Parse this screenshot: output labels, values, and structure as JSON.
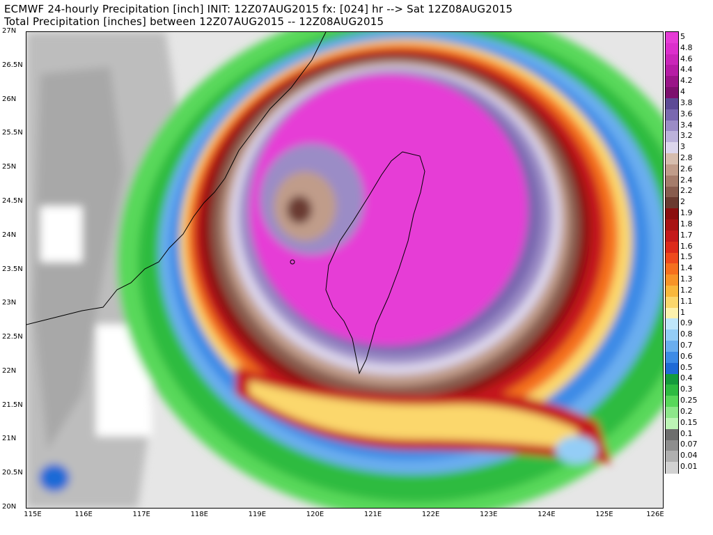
{
  "title_line1": "ECMWF 24-hourly Precipitation [inch] INIT: 12Z07AUG2015 fx: [024] hr --> Sat 12Z08AUG2015",
  "title_line2": "Total Precipitation [inches] between 12Z07AUG2015 -- 12Z08AUG2015",
  "map": {
    "lon_range": [
      115,
      126
    ],
    "lat_range": [
      20,
      27
    ],
    "lat_labels": [
      "27N",
      "26.5N",
      "26N",
      "25.5N",
      "25N",
      "24.5N",
      "24N",
      "23.5N",
      "23N",
      "22.5N",
      "22N",
      "21.5N",
      "21N",
      "20.5N",
      "20N"
    ],
    "lon_labels": [
      "115E",
      "116E",
      "117E",
      "118E",
      "119E",
      "120E",
      "121E",
      "122E",
      "123E",
      "124E",
      "125E",
      "126E"
    ],
    "features": [
      "China coastline",
      "Taiwan",
      "Penghu Islands",
      "Typhoon Soudelor rain shield"
    ]
  },
  "legend": {
    "unit": "inch",
    "levels": [
      {
        "label": "5",
        "color": "#e63cd6"
      },
      {
        "label": "4.8",
        "color": "#dc2fcc"
      },
      {
        "label": "4.6",
        "color": "#ca26b9"
      },
      {
        "label": "4.4",
        "color": "#b61ca5"
      },
      {
        "label": "4.2",
        "color": "#9a1488"
      },
      {
        "label": "4",
        "color": "#7d106e"
      },
      {
        "label": "3.8",
        "color": "#5d4a96"
      },
      {
        "label": "3.6",
        "color": "#7a68b0"
      },
      {
        "label": "3.4",
        "color": "#9b8cc6"
      },
      {
        "label": "3.2",
        "color": "#bcb2da"
      },
      {
        "label": "3",
        "color": "#dcd6ec"
      },
      {
        "label": "2.8",
        "color": "#d6bdae"
      },
      {
        "label": "2.6",
        "color": "#c09c8a"
      },
      {
        "label": "2.4",
        "color": "#a57c6b"
      },
      {
        "label": "2.2",
        "color": "#885c4e"
      },
      {
        "label": "2",
        "color": "#6a3a30"
      },
      {
        "label": "1.9",
        "color": "#8b0f0f"
      },
      {
        "label": "1.8",
        "color": "#a81414"
      },
      {
        "label": "1.7",
        "color": "#c4191a"
      },
      {
        "label": "1.6",
        "color": "#dc2a1a"
      },
      {
        "label": "1.5",
        "color": "#ee4a1c"
      },
      {
        "label": "1.4",
        "color": "#f5701e"
      },
      {
        "label": "1.3",
        "color": "#f79428"
      },
      {
        "label": "1.2",
        "color": "#f9b83c"
      },
      {
        "label": "1.1",
        "color": "#fbd76c"
      },
      {
        "label": "1",
        "color": "#fdf2ae"
      },
      {
        "label": "0.9",
        "color": "#bfe6fa"
      },
      {
        "label": "0.8",
        "color": "#94cdf6"
      },
      {
        "label": "0.7",
        "color": "#6aaeef"
      },
      {
        "label": "0.6",
        "color": "#3d8be6"
      },
      {
        "label": "0.5",
        "color": "#1f6ad6"
      },
      {
        "label": "0.4",
        "color": "#149b3c"
      },
      {
        "label": "0.3",
        "color": "#2dbb41"
      },
      {
        "label": "0.25",
        "color": "#58d85a"
      },
      {
        "label": "0.2",
        "color": "#8de88a"
      },
      {
        "label": "0.15",
        "color": "#bdf5b6"
      },
      {
        "label": "0.1",
        "color": "#6e6e6e"
      },
      {
        "label": "0.07",
        "color": "#8e8e8e"
      },
      {
        "label": "0.04",
        "color": "#b0b0b0"
      },
      {
        "label": "0.01",
        "color": "#d2d2d2"
      }
    ]
  }
}
